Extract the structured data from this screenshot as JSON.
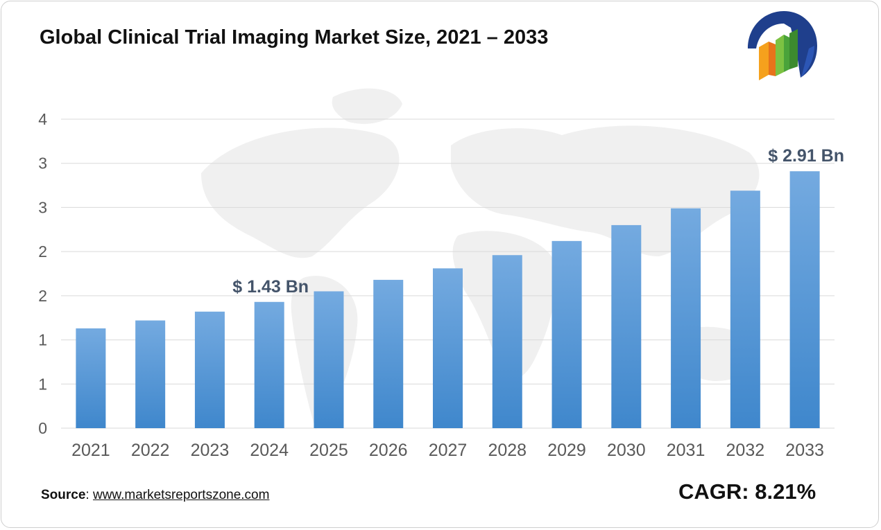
{
  "title": "Global Clinical Trial Imaging Market Size, 2021 – 2033",
  "source": {
    "label": "Source",
    "separator": ": ",
    "url_text": "www.marketsreportszone.com"
  },
  "cagr": {
    "label": "CAGR:",
    "value": "8.21%"
  },
  "logo": {
    "icon": "bar-chart-globe-logo-icon"
  },
  "colors": {
    "bar_top": "#74aae0",
    "bar_bottom": "#3f87cc",
    "grid": "#d9d9d9",
    "annotation": "#44546a",
    "axis_text": "#595959"
  },
  "chart_data": {
    "type": "bar",
    "title": "Global Clinical Trial Imaging Market Size, 2021 – 2033",
    "xlabel": "",
    "ylabel": "",
    "categories": [
      "2021",
      "2022",
      "2023",
      "2024",
      "2025",
      "2026",
      "2027",
      "2028",
      "2029",
      "2030",
      "2031",
      "2032",
      "2033"
    ],
    "values": [
      1.13,
      1.22,
      1.32,
      1.43,
      1.55,
      1.68,
      1.81,
      1.96,
      2.12,
      2.3,
      2.49,
      2.69,
      2.91
    ],
    "ylim": [
      0,
      3.5
    ],
    "yticks": [
      0,
      0.5,
      1.0,
      1.5,
      2.0,
      2.5,
      3.0,
      3.5
    ],
    "ytick_labels": [
      "0",
      "1",
      "1",
      "2",
      "2",
      "3",
      "3",
      "4"
    ],
    "grid": true,
    "annotations": [
      {
        "category": "2024",
        "text": "$ 1.43 Bn"
      },
      {
        "category": "2033",
        "text": "$ 2.91 Bn"
      }
    ]
  }
}
